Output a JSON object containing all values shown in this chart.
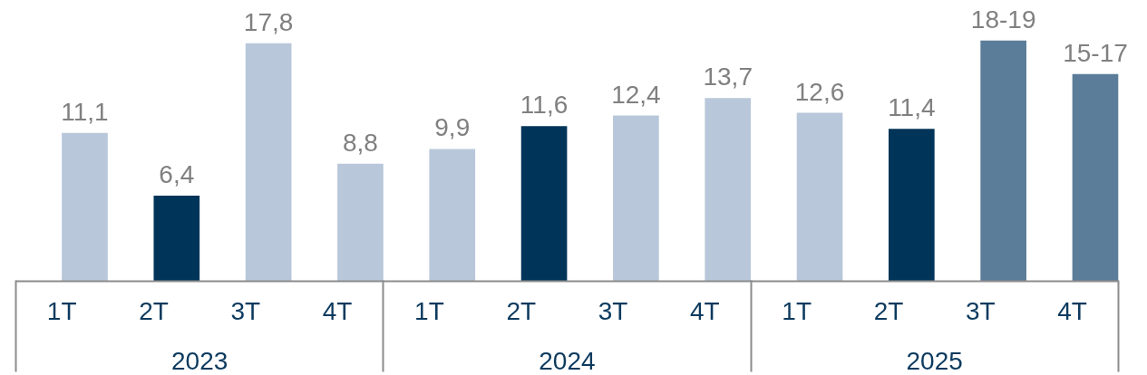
{
  "chart_data": {
    "type": "bar",
    "categories": [
      "1T",
      "2T",
      "3T",
      "4T",
      "1T",
      "2T",
      "3T",
      "4T",
      "1T",
      "2T",
      "3T",
      "4T"
    ],
    "values": [
      11.1,
      6.4,
      17.8,
      8.8,
      9.9,
      11.6,
      12.4,
      13.7,
      12.6,
      11.4,
      18,
      15.5
    ],
    "colors": [
      "#b8c7da",
      "#003458",
      "#b8c7da",
      "#b8c7da",
      "#b8c7da",
      "#003458",
      "#b8c7da",
      "#b8c7da",
      "#b8c7da",
      "#003458",
      "#5c7d99",
      "#5c7d99"
    ],
    "value_labels": [
      "11,1",
      "6,4",
      "17,8",
      "8,8",
      "9,9",
      "11,6",
      "12,4",
      "13,7",
      "12,6",
      "11,4",
      "18-19",
      "15-17"
    ],
    "annotations": [
      "2023",
      "2024",
      "2025"
    ],
    "tick_labels": "x"
  }
}
